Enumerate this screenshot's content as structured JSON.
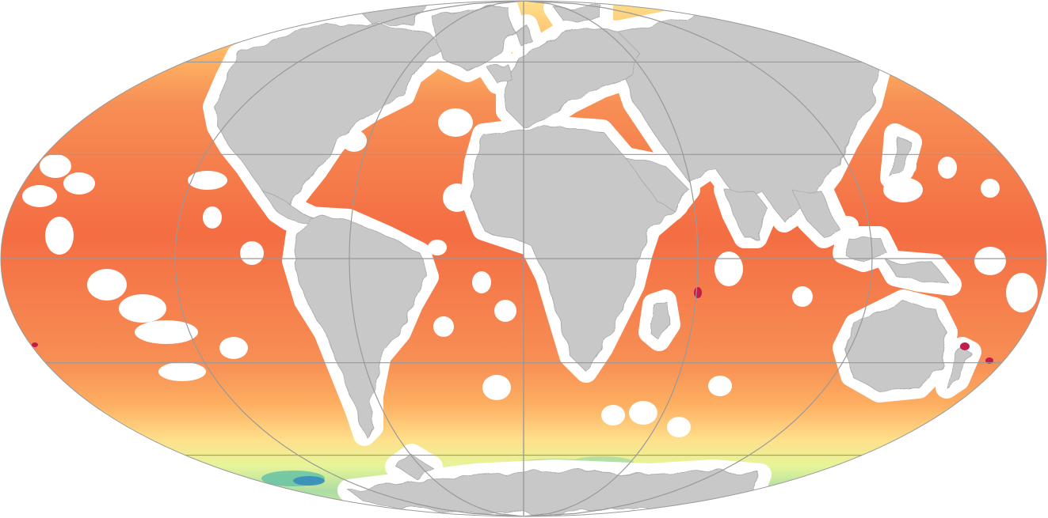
{
  "map": {
    "projection": "mollweide",
    "background_color": "#ffffff",
    "ocean_palette": [
      "#f46d43",
      "#f78f55",
      "#fdae61",
      "#fee08b",
      "#e6f598",
      "#abdda4",
      "#66c2a5",
      "#3288bd",
      "#5e4fa2"
    ],
    "land_color": "#c8c8c8",
    "no_data_color": "#ffffff",
    "graticule_color": "#999999",
    "hotspot_color": "#c21d4a",
    "graticule": {
      "parallels_deg": [
        -60,
        -30,
        0,
        30,
        60
      ],
      "meridians_deg": [
        -120,
        -60,
        0,
        60,
        120
      ]
    }
  }
}
